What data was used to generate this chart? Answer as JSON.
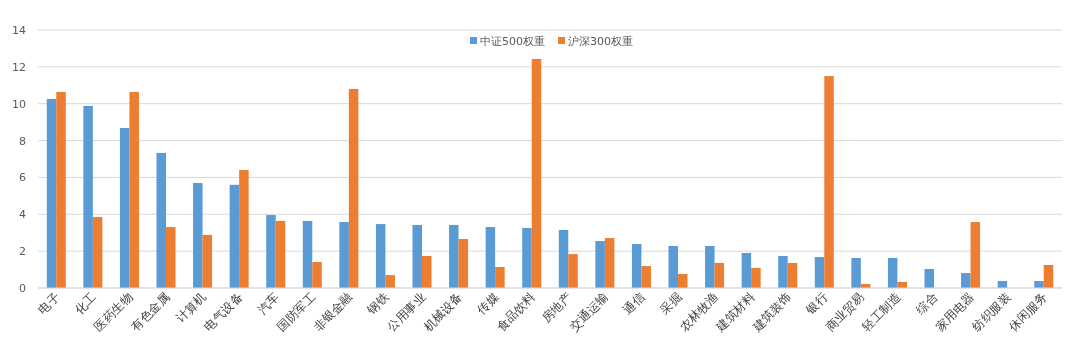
{
  "chart_data": {
    "type": "bar",
    "categories": [
      "电子",
      "化工",
      "医药生物",
      "有色金属",
      "计算机",
      "电气设备",
      "汽车",
      "国防军工",
      "非银金融",
      "钢铁",
      "公用事业",
      "机械设备",
      "传媒",
      "食品饮料",
      "房地产",
      "交通运输",
      "通信",
      "采掘",
      "农林牧渔",
      "建筑材料",
      "建筑装饰",
      "银行",
      "商业贸易",
      "轻工制造",
      "综合",
      "家用电器",
      "纺织服装",
      "休闲服务"
    ],
    "series": [
      {
        "name": "中证500权重",
        "color": "#5b9bd5",
        "values": [
          10.26,
          9.88,
          8.68,
          7.33,
          5.7,
          5.6,
          3.96,
          3.64,
          3.58,
          3.47,
          3.42,
          3.42,
          3.31,
          3.26,
          3.15,
          2.55,
          2.39,
          2.28,
          2.28,
          1.9,
          1.74,
          1.68,
          1.63,
          1.63,
          1.03,
          0.81,
          0.38,
          0.38
        ]
      },
      {
        "name": "沪深300权重",
        "color": "#ed7d31",
        "values": [
          10.64,
          3.85,
          10.64,
          3.31,
          2.88,
          6.4,
          3.64,
          1.41,
          10.8,
          0.7,
          1.74,
          2.66,
          1.14,
          12.43,
          1.84,
          2.71,
          1.19,
          0.76,
          1.36,
          1.09,
          1.36,
          11.5,
          0.22,
          0.33,
          0,
          3.58,
          0,
          1.25
        ]
      }
    ],
    "ylim": [
      0,
      14
    ],
    "yticks": [
      0,
      2,
      4,
      6,
      8,
      10,
      12,
      14
    ],
    "grid": "y",
    "legend": "top"
  }
}
